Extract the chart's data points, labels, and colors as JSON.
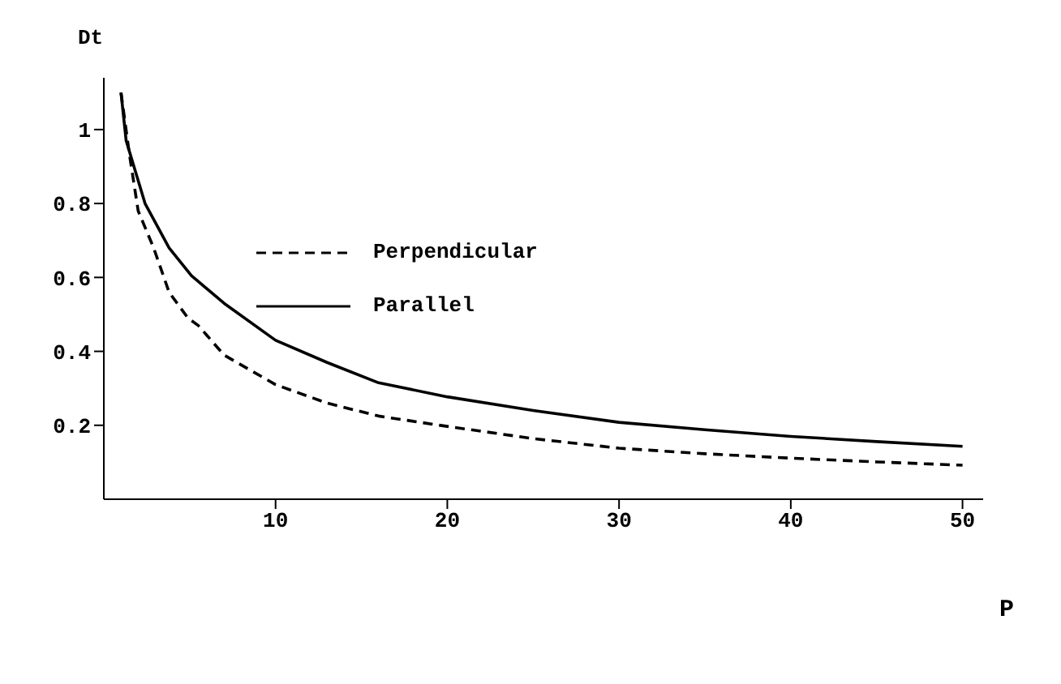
{
  "chart_data": {
    "type": "line",
    "xlabel": "P",
    "ylabel": "Dt",
    "xlim": [
      0,
      51.2
    ],
    "ylim": [
      0,
      1.14
    ],
    "xticks": [
      10,
      20,
      30,
      40,
      50
    ],
    "yticks": [
      0.2,
      0.4,
      0.6,
      0.8,
      1
    ],
    "grid": false,
    "legend": "top left",
    "marker": "none",
    "series": [
      {
        "name": "Perpendicular",
        "color": "#000000",
        "line_style": "dashed",
        "x": [
          1,
          1.5,
          2,
          2.9,
          3.8,
          4.9,
          5.5,
          7,
          10,
          13,
          16,
          20,
          25,
          30,
          35,
          40,
          45,
          50
        ],
        "values": [
          1.1,
          0.93,
          0.78,
          0.68,
          0.56,
          0.49,
          0.47,
          0.39,
          0.31,
          0.26,
          0.225,
          0.197,
          0.164,
          0.138,
          0.123,
          0.111,
          0.101,
          0.092
        ]
      },
      {
        "name": "Parallel",
        "color": "#000000",
        "line_style": "solid",
        "x": [
          1,
          1.3,
          2.4,
          3.8,
          5.1,
          7,
          10,
          13,
          16,
          20,
          25,
          30,
          35,
          40,
          45,
          50
        ],
        "values": [
          1.1,
          0.97,
          0.8,
          0.68,
          0.605,
          0.53,
          0.43,
          0.37,
          0.315,
          0.277,
          0.24,
          0.208,
          0.188,
          0.17,
          0.156,
          0.143
        ]
      }
    ]
  }
}
